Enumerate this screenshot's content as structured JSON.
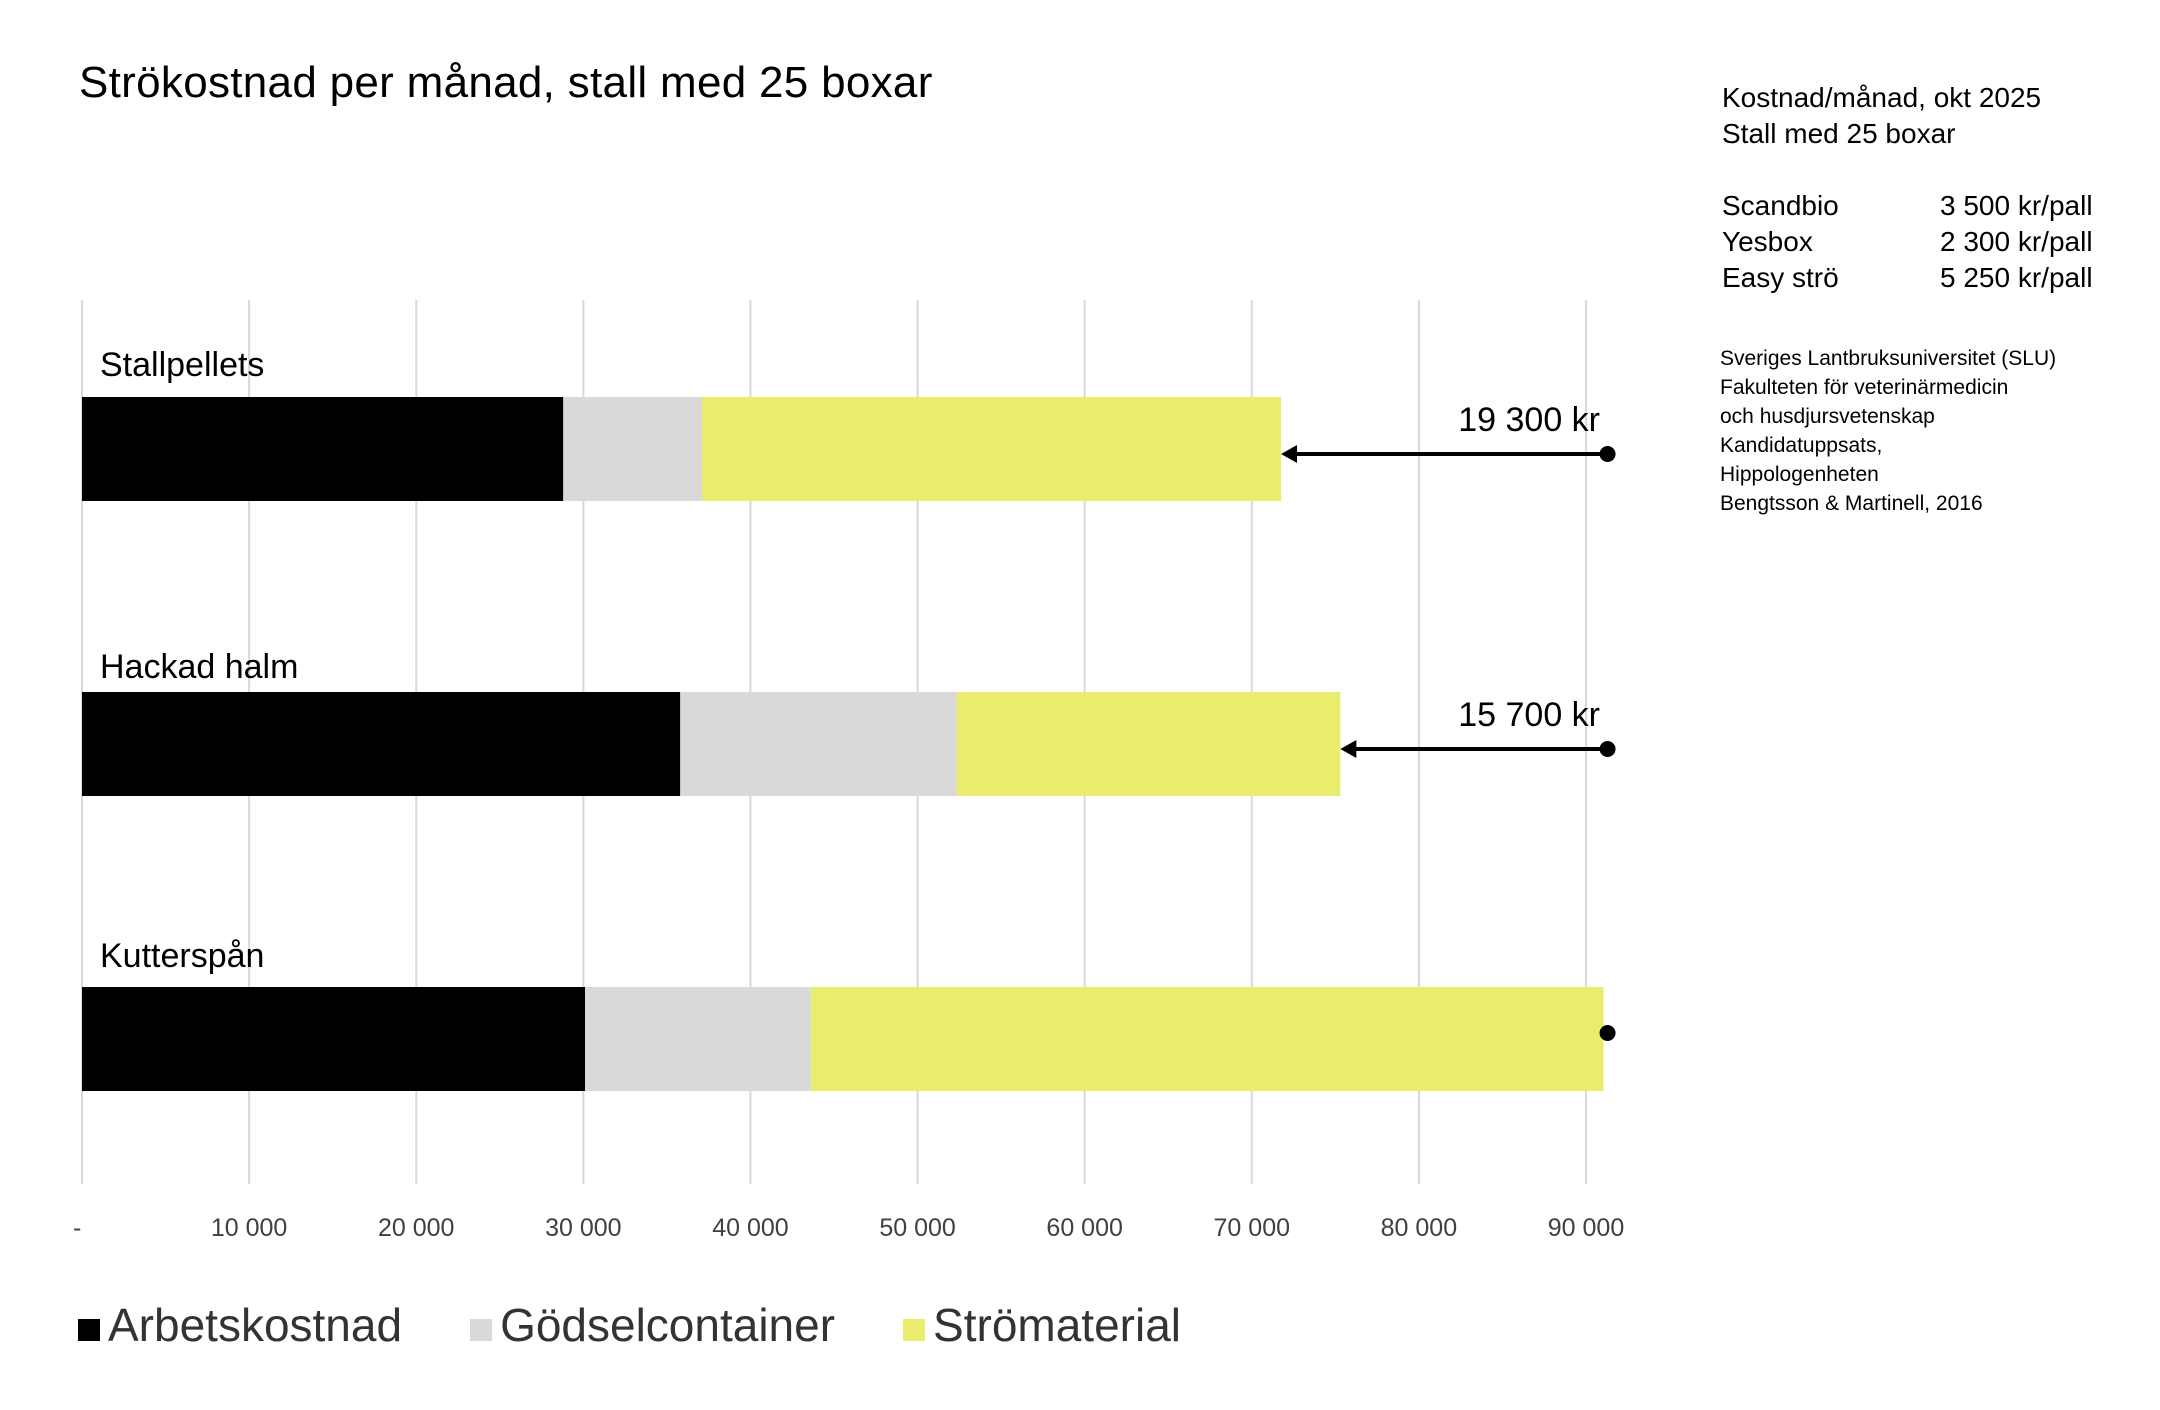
{
  "title": "Strökostnad per månad, stall med 25 boxar",
  "info_panel": {
    "line1": "Kostnad/månad, okt 2025",
    "line2": "Stall med 25 boxar",
    "prices": [
      {
        "name": "Scandbio",
        "price": "3 500 kr/pall"
      },
      {
        "name": "Yesbox",
        "price": "2 300 kr/pall"
      },
      {
        "name": "Easy strö",
        "price": "5 250 kr/pall"
      }
    ],
    "source": [
      "Sveriges Lantbruksuniversitet (SLU)",
      "Fakulteten för veterinärmedicin",
      "och husdjursvetenskap",
      "Kandidatuppsats,",
      "Hippologenheten",
      "Bengtsson & Martinell, 2016"
    ]
  },
  "colors": {
    "Arbetskostnad": "#000000",
    "Gödselcontainer": "#d9d9d9",
    "Strömaterial": "#e9ec6c",
    "grid": "#d9d9d9"
  },
  "chart_data": {
    "type": "bar",
    "orientation": "horizontal",
    "stacked": true,
    "title": "Strökostnad per månad, stall med 25 boxar",
    "categories": [
      "Stallpellets",
      "Hackad halm",
      "Kutterspån"
    ],
    "series": [
      {
        "name": "Arbetskostnad",
        "values": [
          28800,
          35800,
          30100
        ]
      },
      {
        "name": "Gödselcontainer",
        "values": [
          8300,
          16550,
          13500
        ]
      },
      {
        "name": "Strömaterial",
        "values": [
          34650,
          22950,
          47450
        ]
      }
    ],
    "totals": [
      71750,
      75300,
      91050
    ],
    "xlim": [
      0,
      90000
    ],
    "xticks": [
      "-",
      "10 000",
      "20 000",
      "30 000",
      "40 000",
      "50 000",
      "60 000",
      "70 000",
      "80 000",
      "90 000"
    ],
    "grid": true,
    "legend": "bottom-left",
    "annotations": [
      {
        "category": "Stallpellets",
        "text": "19 300 kr"
      },
      {
        "category": "Hackad halm",
        "text": "15 700 kr"
      }
    ]
  }
}
